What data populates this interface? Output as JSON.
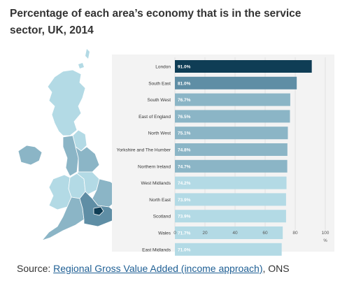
{
  "title": "Percentage of each area’s economy that is in the service sector, UK, 2014",
  "source": {
    "prefix": "Source: ",
    "link_text": "Regional Gross Value Added (income approach)",
    "suffix": ", ONS"
  },
  "colors": {
    "highest": "#0f3d55",
    "high": "#5f8ea5",
    "mid": "#8bb5c6",
    "low": "#b3dae5",
    "grid": "#e2e2e2",
    "panel": "#f3f3f3"
  },
  "chart_data": {
    "type": "bar",
    "orientation": "horizontal",
    "categories": [
      "London",
      "South East",
      "South West",
      "East of England",
      "North West",
      "Yorkshire and The Humber",
      "Northern Ireland",
      "West Midlands",
      "North East",
      "Scotland",
      "Wales",
      "East Midlands"
    ],
    "values": [
      91.0,
      81.0,
      76.7,
      76.5,
      75.1,
      74.8,
      74.7,
      74.2,
      73.9,
      73.9,
      71.7,
      71.0
    ],
    "value_labels": [
      "91.0%",
      "81.0%",
      "76.7%",
      "76.5%",
      "75.1%",
      "74.8%",
      "74.7%",
      "74.2%",
      "73.9%",
      "73.9%",
      "71.7%",
      "71.0%"
    ],
    "color_bands": [
      "highest",
      "high",
      "mid",
      "mid",
      "mid",
      "mid",
      "mid",
      "low",
      "low",
      "low",
      "low",
      "low"
    ],
    "xlim": [
      0,
      100
    ],
    "xticks": [
      0,
      20,
      40,
      60,
      80,
      100
    ],
    "xunit": "%",
    "grid": true
  }
}
